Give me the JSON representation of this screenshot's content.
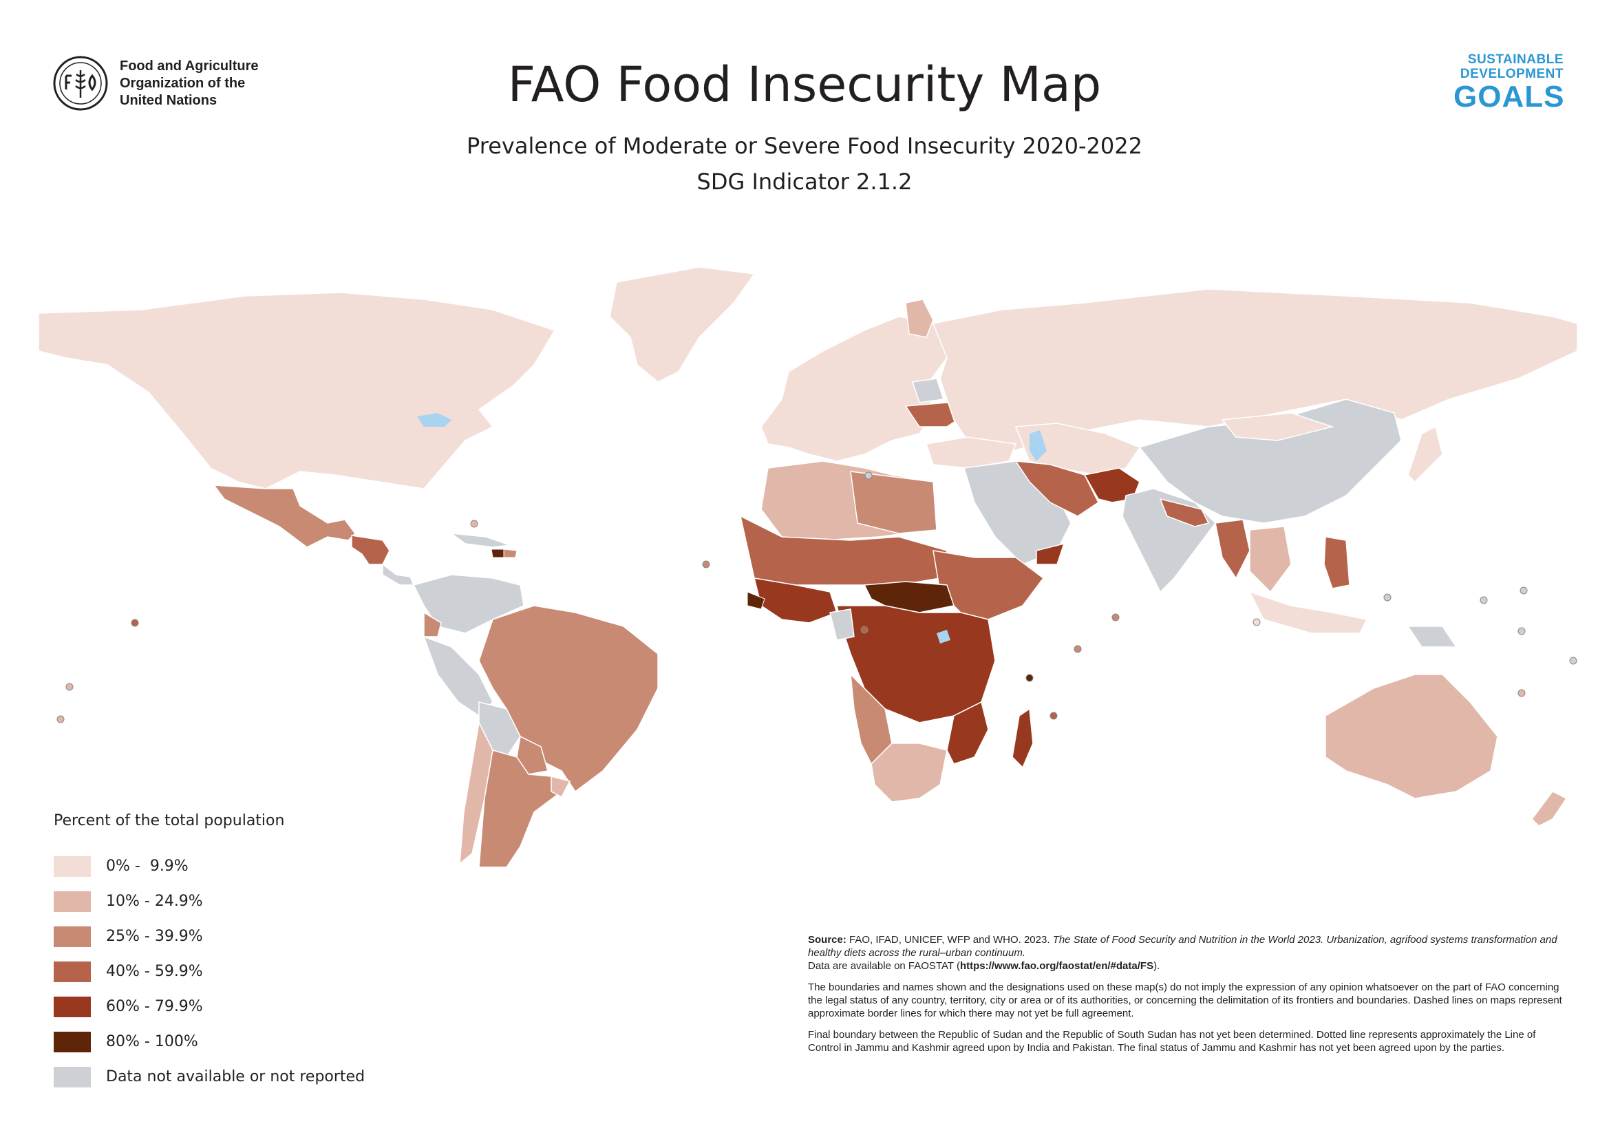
{
  "header": {
    "org_line1": "Food and Agriculture",
    "org_line2": "Organization of the",
    "org_line3": "United Nations",
    "title": "FAO Food Insecurity Map",
    "subtitle": "Prevalence of Moderate or Severe Food Insecurity 2020-2022",
    "indicator": "SDG Indicator 2.1.2",
    "sdg_line1": "SUSTAINABLE",
    "sdg_line2": "DEVELOPMENT",
    "sdg_line3": "GOALS"
  },
  "colors": {
    "class1": "#f2ded7",
    "class2": "#e1b7a9",
    "class3": "#c98a74",
    "class4": "#b5634a",
    "class5": "#98391f",
    "class6": "#5e2509",
    "no_data": "#cdd1d6",
    "water": "#a8d4f2",
    "fao_blue": "#2a96d3"
  },
  "legend": {
    "title": "Percent of the total population",
    "items": [
      {
        "label": "0% -  9.9%",
        "color": "#f2ded7"
      },
      {
        "label": "10% - 24.9%",
        "color": "#e1b7a9"
      },
      {
        "label": "25% - 39.9%",
        "color": "#c98a74"
      },
      {
        "label": "40% - 59.9%",
        "color": "#b5634a"
      },
      {
        "label": "60% - 79.9%",
        "color": "#98391f"
      },
      {
        "label": "80% - 100%",
        "color": "#5e2509"
      },
      {
        "label": "Data not available or not reported",
        "color": "#cdd1d6"
      }
    ]
  },
  "notes": {
    "source_label": "Source:",
    "source_text": " FAO, IFAD, UNICEF, WFP and WHO. 2023. ",
    "source_title": "The State of Food Security and Nutrition in the World 2023. Urbanization, agrifood systems transformation and healthy diets across the rural–urban continuum.",
    "data_prefix": "Data are available on FAOSTAT (",
    "data_url": "https://www.fao.org/faostat/en/#data/FS",
    "data_suffix": ").",
    "disclaimer": "The boundaries and names shown and the designations used on these map(s) do not imply the expression of any opinion whatsoever on the part of FAO concerning the legal status of any country, territory, city or area or of its authorities, or concerning the delimitation of its frontiers and boundaries. Dashed lines on maps represent approximate border lines for which there may not yet be full agreement.",
    "sudan_note": "Final boundary between the Republic of Sudan and the Republic of South Sudan has not yet been determined. Dotted line represents approximately the Line of Control in Jammu and Kashmir agreed upon by India and Pakistan. The final status of Jammu and Kashmir has not yet been agreed upon by the parties."
  }
}
